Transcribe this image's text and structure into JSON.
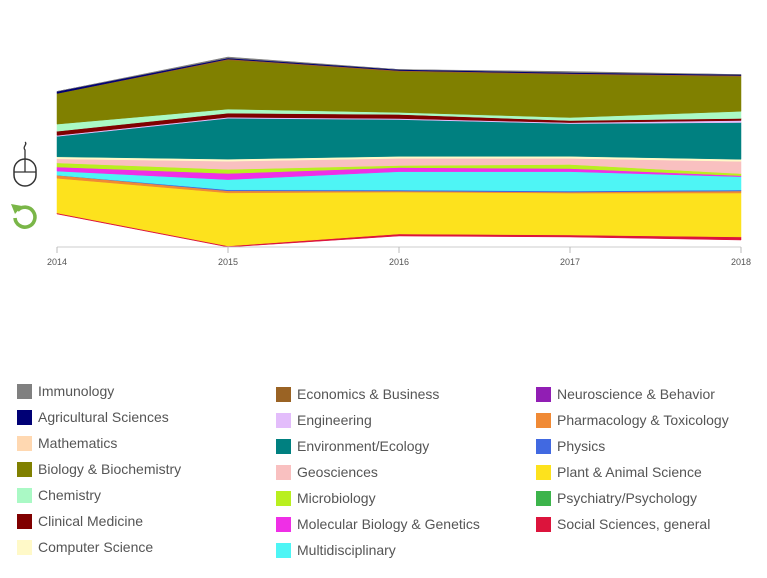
{
  "chart_data": {
    "type": "area",
    "stacked": true,
    "x": [
      "2014",
      "2015",
      "2016",
      "2017",
      "2018"
    ],
    "series": [
      {
        "name": "Social Sciences, general",
        "color": "#dc143c",
        "values": [
          1,
          1,
          2,
          2,
          3
        ]
      },
      {
        "name": "Plant & Animal Science",
        "color": "#fde21d",
        "values": [
          34,
          52,
          41,
          41,
          43
        ]
      },
      {
        "name": "Pharmacology & Toxicology",
        "color": "#f08a35",
        "values": [
          3,
          2,
          1,
          1,
          2
        ]
      },
      {
        "name": "Physics",
        "color": "#4169e1",
        "values": [
          0,
          1,
          1,
          1,
          1
        ]
      },
      {
        "name": "Multidisciplinary",
        "color": "#4ef5f5",
        "values": [
          4,
          10,
          18,
          19,
          13
        ]
      },
      {
        "name": "Molecular Biology & Genetics",
        "color": "#ef2fe6",
        "values": [
          4,
          6,
          4,
          3,
          1
        ]
      },
      {
        "name": "Microbiology",
        "color": "#b9ef1f",
        "values": [
          4,
          4,
          2,
          4,
          2
        ]
      },
      {
        "name": "Geosciences",
        "color": "#f9c0c0",
        "values": [
          4,
          8,
          7,
          6,
          12
        ]
      },
      {
        "name": "Computer Science",
        "color": "#fff9c8",
        "values": [
          2,
          2,
          2,
          2,
          2
        ]
      },
      {
        "name": "Environment/Ecology",
        "color": "#008080",
        "values": [
          20,
          40,
          36,
          32,
          36
        ]
      },
      {
        "name": "Engineering",
        "color": "#e3bdfb",
        "values": [
          1,
          1,
          1,
          1,
          2
        ]
      },
      {
        "name": "Clinical Medicine",
        "color": "#800000",
        "values": [
          4,
          4,
          4,
          2,
          2
        ]
      },
      {
        "name": "Chemistry",
        "color": "#aaf9c5",
        "values": [
          7,
          4,
          2,
          3,
          7
        ]
      },
      {
        "name": "Biology & Biochemistry",
        "color": "#808000",
        "values": [
          30,
          48,
          40,
          42,
          34
        ]
      },
      {
        "name": "Economics & Business",
        "color": "#9a6324",
        "values": [
          0,
          1,
          1,
          1,
          1
        ]
      },
      {
        "name": "Agricultural Sciences",
        "color": "#000075",
        "values": [
          2,
          1,
          1,
          1,
          1
        ]
      },
      {
        "name": "Immunology",
        "color": "#808080",
        "values": [
          0,
          1,
          0,
          1,
          0
        ]
      }
    ],
    "ylim": [
      0,
      186
    ],
    "grid": false,
    "legend": "bottom"
  },
  "legend": {
    "columns": [
      [
        {
          "label": "Immunology",
          "color": "#808080"
        },
        {
          "label": "Agricultural Sciences",
          "color": "#000075"
        },
        {
          "label": "Mathematics",
          "color": "#ffd8b1"
        },
        {
          "label": "Biology & Biochemistry",
          "color": "#808000"
        },
        {
          "label": "Chemistry",
          "color": "#aaf9c5"
        },
        {
          "label": "Clinical Medicine",
          "color": "#800000"
        },
        {
          "label": "Computer Science",
          "color": "#fff9c8"
        }
      ],
      [
        {
          "label": "Economics & Business",
          "color": "#9a6324"
        },
        {
          "label": "Engineering",
          "color": "#e3bdfb"
        },
        {
          "label": "Environment/Ecology",
          "color": "#008080"
        },
        {
          "label": "Geosciences",
          "color": "#f9c0c0"
        },
        {
          "label": "Microbiology",
          "color": "#b9ef1f"
        },
        {
          "label": "Molecular Biology & Genetics",
          "color": "#ef2fe6"
        },
        {
          "label": "Multidisciplinary",
          "color": "#4ef5f5"
        }
      ],
      [
        {
          "label": "Neuroscience & Behavior",
          "color": "#911eb4"
        },
        {
          "label": "Pharmacology & Toxicology",
          "color": "#f08a35"
        },
        {
          "label": "Physics",
          "color": "#4169e1"
        },
        {
          "label": "Plant & Animal Science",
          "color": "#fde21d"
        },
        {
          "label": "Psychiatry/Psychology",
          "color": "#3cb44b"
        },
        {
          "label": "Social Sciences, general",
          "color": "#dc143c"
        }
      ]
    ]
  },
  "controls": {
    "mouse_icon": "mouse-icon",
    "reset_icon": "reset-icon",
    "reset_color": "#7ab648"
  }
}
